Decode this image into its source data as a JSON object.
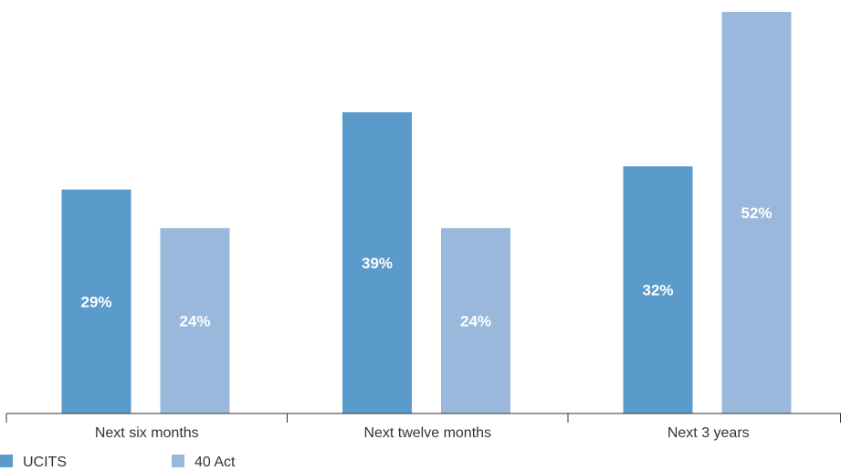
{
  "chart_data": {
    "type": "bar",
    "categories": [
      "Next six months",
      "Next twelve months",
      "Next 3 years"
    ],
    "series": [
      {
        "name": "UCITS",
        "values": [
          29,
          39,
          32
        ],
        "labels": [
          "29%",
          "39%",
          "32%"
        ],
        "color": "#5b9bcc"
      },
      {
        "name": "40 Act",
        "values": [
          24,
          24,
          52
        ],
        "labels": [
          "24%",
          "24%",
          "52%"
        ],
        "color": "#9ab8dc"
      }
    ],
    "title": "",
    "xlabel": "",
    "ylabel": "",
    "ylim": [
      0,
      52
    ],
    "grid": false,
    "legend_position": "bottom-left"
  }
}
